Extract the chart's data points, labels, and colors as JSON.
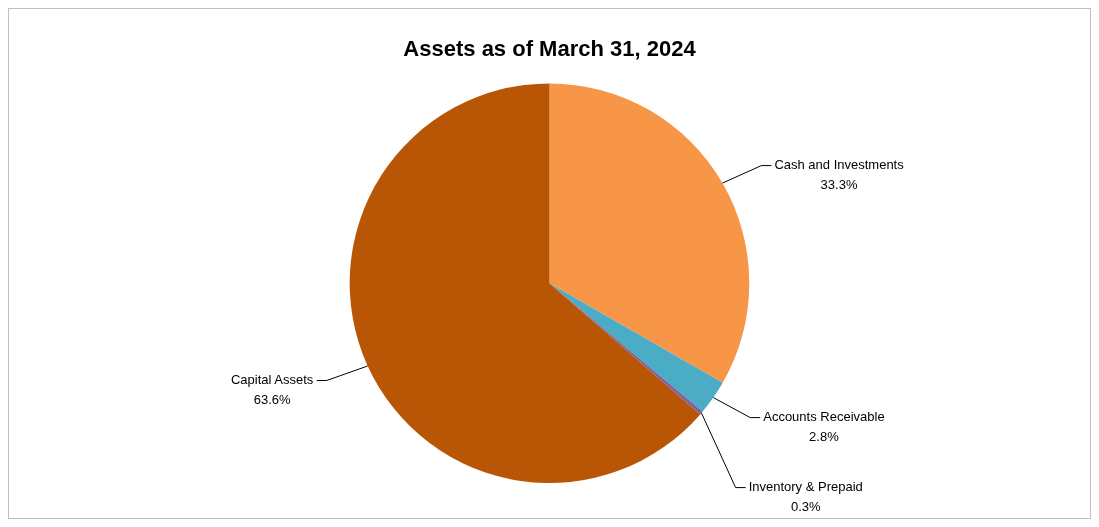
{
  "chart_data": {
    "type": "pie",
    "title": "Assets as of March 31, 2024",
    "categories": [
      "Cash and Investments",
      "Accounts Receivable",
      "Inventory & Prepaid",
      "Capital Assets"
    ],
    "values": [
      33.3,
      2.8,
      0.3,
      63.6
    ],
    "colors": [
      "#f79646",
      "#4bacc6",
      "#8064a2",
      "#b85606"
    ],
    "value_labels": [
      "33.3%",
      "2.8%",
      "0.3%",
      "63.6%"
    ],
    "legend": false
  }
}
